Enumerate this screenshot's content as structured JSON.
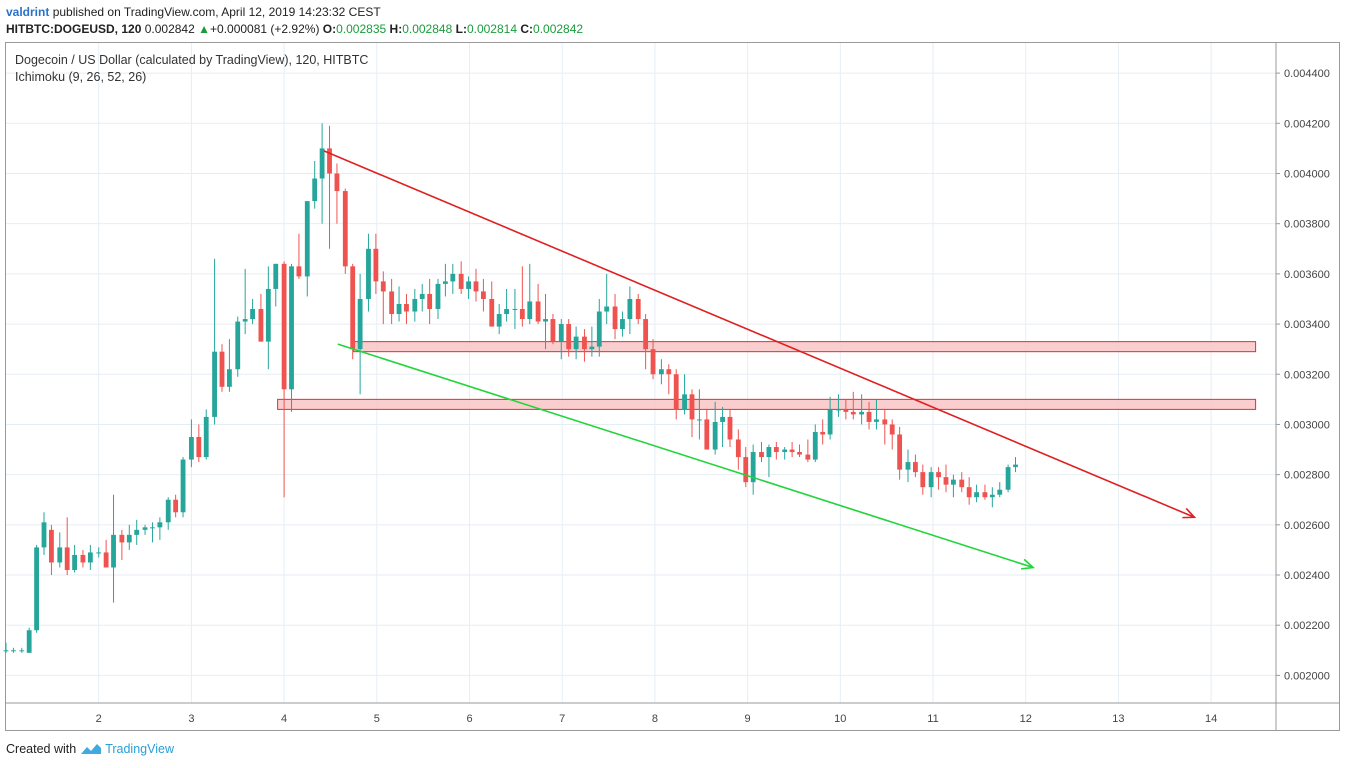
{
  "header": {
    "user": "valdrint",
    "published": "published on TradingView.com, April 12, 2019 14:23:32 CEST",
    "symbol": "HITBTC:DOGEUSD",
    "interval": ", 120",
    "last": "0.002842",
    "change": "+0.000081 (+2.92%)",
    "o_label": "O:",
    "o_value": "0.002835",
    "h_label": "H:",
    "h_value": "0.002848",
    "l_label": "L:",
    "l_value": "0.002814",
    "c_label": "C:",
    "c_value": "0.002842"
  },
  "legend": {
    "title": "Dogecoin / US Dollar (calculated by TradingView), 120, HITBTC",
    "indicator": "Ichimoku (9, 26, 52, 26)"
  },
  "footer": {
    "created_with": "Created with",
    "brand": "TradingView"
  },
  "colors": {
    "up": "#26a69a",
    "down": "#ef5350",
    "resistance": "#e02020",
    "support": "#22d43a",
    "zone_fill": "#f9c6c6",
    "zone_stroke": "#e03030",
    "grid": "#e6eef5"
  },
  "chart_data": {
    "type": "candlestick",
    "title": "Dogecoin / US Dollar (calculated by TradingView), 120, HITBTC",
    "xlabel": "",
    "ylabel": "",
    "x_ticks": [
      "2",
      "3",
      "4",
      "5",
      "6",
      "7",
      "8",
      "9",
      "10",
      "11",
      "12",
      "13",
      "14"
    ],
    "x_tick_values": [
      2,
      3,
      4,
      5,
      6,
      7,
      8,
      9,
      10,
      11,
      12,
      13,
      14
    ],
    "xlim": [
      1,
      14.7
    ],
    "y_ticks": [
      "0.002000",
      "0.002200",
      "0.002400",
      "0.002600",
      "0.002800",
      "0.003000",
      "0.003200",
      "0.003400",
      "0.003600",
      "0.003800",
      "0.004000",
      "0.004200",
      "0.004400"
    ],
    "y_tick_values": [
      0.002,
      0.0022,
      0.0024,
      0.0026,
      0.0028,
      0.003,
      0.0032,
      0.0034,
      0.0036,
      0.0038,
      0.004,
      0.0042,
      0.0044
    ],
    "ylim": [
      0.00189,
      0.00452
    ],
    "candles": [
      [
        1.0,
        0.0021,
        0.00213,
        0.00209,
        0.0021
      ],
      [
        1.08,
        0.0021,
        0.00211,
        0.00209,
        0.0021
      ],
      [
        1.17,
        0.0021,
        0.00211,
        0.00209,
        0.0021
      ],
      [
        1.25,
        0.00209,
        0.00219,
        0.00209,
        0.00218
      ],
      [
        1.33,
        0.00218,
        0.00252,
        0.00217,
        0.00251
      ],
      [
        1.41,
        0.00251,
        0.00265,
        0.00248,
        0.00261
      ],
      [
        1.49,
        0.00258,
        0.0026,
        0.0024,
        0.00245
      ],
      [
        1.58,
        0.00245,
        0.00257,
        0.00243,
        0.00251
      ],
      [
        1.66,
        0.00251,
        0.00263,
        0.0024,
        0.00242
      ],
      [
        1.74,
        0.00242,
        0.00252,
        0.00241,
        0.00248
      ],
      [
        1.83,
        0.00248,
        0.0025,
        0.00243,
        0.00245
      ],
      [
        1.91,
        0.00245,
        0.00252,
        0.00242,
        0.00249
      ],
      [
        2.0,
        0.00249,
        0.00251,
        0.00247,
        0.00249
      ],
      [
        2.08,
        0.00249,
        0.00254,
        0.00243,
        0.00243
      ],
      [
        2.16,
        0.00243,
        0.00272,
        0.00229,
        0.00256
      ],
      [
        2.25,
        0.00256,
        0.00258,
        0.00246,
        0.00253
      ],
      [
        2.33,
        0.00253,
        0.0026,
        0.0025,
        0.00256
      ],
      [
        2.41,
        0.00256,
        0.00262,
        0.00252,
        0.00258
      ],
      [
        2.5,
        0.00258,
        0.0026,
        0.00256,
        0.00259
      ],
      [
        2.58,
        0.00259,
        0.00261,
        0.00253,
        0.00259
      ],
      [
        2.66,
        0.00259,
        0.00263,
        0.00254,
        0.00261
      ],
      [
        2.75,
        0.00261,
        0.00271,
        0.00258,
        0.0027
      ],
      [
        2.83,
        0.0027,
        0.00272,
        0.00263,
        0.00265
      ],
      [
        2.91,
        0.00265,
        0.00287,
        0.00263,
        0.00286
      ],
      [
        3.0,
        0.00286,
        0.00302,
        0.00283,
        0.00295
      ],
      [
        3.08,
        0.00295,
        0.003,
        0.00285,
        0.00287
      ],
      [
        3.16,
        0.00287,
        0.00306,
        0.00286,
        0.00303
      ],
      [
        3.25,
        0.00303,
        0.00366,
        0.003,
        0.00329
      ],
      [
        3.33,
        0.00329,
        0.00332,
        0.00313,
        0.00315
      ],
      [
        3.41,
        0.00315,
        0.00334,
        0.00313,
        0.00322
      ],
      [
        3.5,
        0.00322,
        0.00343,
        0.00319,
        0.00341
      ],
      [
        3.58,
        0.00341,
        0.00362,
        0.00336,
        0.00342
      ],
      [
        3.66,
        0.00342,
        0.0035,
        0.0034,
        0.00346
      ],
      [
        3.75,
        0.00346,
        0.00352,
        0.00333,
        0.00333
      ],
      [
        3.83,
        0.00333,
        0.00363,
        0.00322,
        0.00354
      ],
      [
        3.91,
        0.00354,
        0.00364,
        0.00347,
        0.00364
      ],
      [
        4.0,
        0.00364,
        0.00365,
        0.00271,
        0.00314
      ],
      [
        4.08,
        0.00314,
        0.00364,
        0.00305,
        0.00363
      ],
      [
        4.16,
        0.00363,
        0.00376,
        0.00358,
        0.00359
      ],
      [
        4.25,
        0.00359,
        0.00388,
        0.00351,
        0.00389
      ],
      [
        4.33,
        0.00389,
        0.00405,
        0.00386,
        0.00398
      ],
      [
        4.41,
        0.00398,
        0.0042,
        0.0038,
        0.0041
      ],
      [
        4.49,
        0.0041,
        0.00419,
        0.0037,
        0.004
      ],
      [
        4.57,
        0.004,
        0.00404,
        0.0038,
        0.00393
      ],
      [
        4.66,
        0.00393,
        0.00394,
        0.0036,
        0.00363
      ],
      [
        4.74,
        0.00363,
        0.00364,
        0.00326,
        0.0033
      ],
      [
        4.82,
        0.0033,
        0.0036,
        0.00312,
        0.0035
      ],
      [
        4.91,
        0.0035,
        0.00376,
        0.00345,
        0.0037
      ],
      [
        4.99,
        0.0037,
        0.00376,
        0.00352,
        0.00357
      ],
      [
        5.07,
        0.00357,
        0.00361,
        0.0034,
        0.00353
      ],
      [
        5.16,
        0.00353,
        0.00358,
        0.0034,
        0.00344
      ],
      [
        5.24,
        0.00344,
        0.00355,
        0.00341,
        0.00348
      ],
      [
        5.32,
        0.00348,
        0.00352,
        0.0034,
        0.00345
      ],
      [
        5.41,
        0.00345,
        0.00354,
        0.00341,
        0.0035
      ],
      [
        5.49,
        0.0035,
        0.00356,
        0.00345,
        0.00352
      ],
      [
        5.57,
        0.00352,
        0.00358,
        0.0034,
        0.00346
      ],
      [
        5.66,
        0.00346,
        0.00358,
        0.00342,
        0.00356
      ],
      [
        5.74,
        0.00356,
        0.00364,
        0.00351,
        0.00357
      ],
      [
        5.82,
        0.00357,
        0.00364,
        0.00352,
        0.0036
      ],
      [
        5.91,
        0.0036,
        0.00365,
        0.00352,
        0.00354
      ],
      [
        5.99,
        0.00354,
        0.00359,
        0.0035,
        0.00357
      ],
      [
        6.07,
        0.00357,
        0.00362,
        0.00349,
        0.00353
      ],
      [
        6.15,
        0.00353,
        0.00358,
        0.00345,
        0.0035
      ],
      [
        6.24,
        0.0035,
        0.00357,
        0.0034,
        0.00339
      ],
      [
        6.32,
        0.00339,
        0.00348,
        0.00336,
        0.00344
      ],
      [
        6.4,
        0.00344,
        0.00354,
        0.00341,
        0.00346
      ],
      [
        6.49,
        0.00346,
        0.00354,
        0.00338,
        0.00346
      ],
      [
        6.57,
        0.00346,
        0.00363,
        0.00339,
        0.00342
      ],
      [
        6.65,
        0.00342,
        0.00364,
        0.0034,
        0.00349
      ],
      [
        6.74,
        0.00349,
        0.00356,
        0.0034,
        0.00341
      ],
      [
        6.82,
        0.00341,
        0.00352,
        0.0033,
        0.00342
      ],
      [
        6.9,
        0.00342,
        0.00344,
        0.00332,
        0.00333
      ],
      [
        6.99,
        0.00333,
        0.00342,
        0.00326,
        0.0034
      ],
      [
        7.07,
        0.0034,
        0.00342,
        0.00327,
        0.0033
      ],
      [
        7.15,
        0.0033,
        0.00339,
        0.00326,
        0.00335
      ],
      [
        7.24,
        0.00335,
        0.00338,
        0.00325,
        0.0033
      ],
      [
        7.32,
        0.0033,
        0.00339,
        0.00327,
        0.00331
      ],
      [
        7.4,
        0.00331,
        0.0035,
        0.00327,
        0.00345
      ],
      [
        7.48,
        0.00345,
        0.0036,
        0.0034,
        0.00347
      ],
      [
        7.57,
        0.00347,
        0.00352,
        0.00334,
        0.00338
      ],
      [
        7.65,
        0.00338,
        0.00345,
        0.00335,
        0.00342
      ],
      [
        7.73,
        0.00342,
        0.00355,
        0.00336,
        0.0035
      ],
      [
        7.82,
        0.0035,
        0.00352,
        0.0034,
        0.00342
      ],
      [
        7.9,
        0.00342,
        0.00344,
        0.00322,
        0.0033
      ],
      [
        7.98,
        0.0033,
        0.00334,
        0.00318,
        0.0032
      ],
      [
        8.07,
        0.0032,
        0.00326,
        0.00316,
        0.00322
      ],
      [
        8.15,
        0.00322,
        0.00324,
        0.00312,
        0.0032
      ],
      [
        8.23,
        0.0032,
        0.00322,
        0.00302,
        0.00306
      ],
      [
        8.32,
        0.00306,
        0.0032,
        0.00304,
        0.00312
      ],
      [
        8.4,
        0.00312,
        0.00314,
        0.00295,
        0.00302
      ],
      [
        8.48,
        0.00302,
        0.00314,
        0.00294,
        0.00302
      ],
      [
        8.56,
        0.00302,
        0.00306,
        0.0029,
        0.0029
      ],
      [
        8.65,
        0.0029,
        0.00309,
        0.00288,
        0.00301
      ],
      [
        8.73,
        0.00301,
        0.00307,
        0.00291,
        0.00303
      ],
      [
        8.81,
        0.00303,
        0.00306,
        0.00291,
        0.00294
      ],
      [
        8.9,
        0.00294,
        0.00298,
        0.00282,
        0.00287
      ],
      [
        8.98,
        0.00287,
        0.00291,
        0.00275,
        0.00277
      ],
      [
        9.06,
        0.00277,
        0.00292,
        0.00272,
        0.00289
      ],
      [
        9.15,
        0.00289,
        0.00293,
        0.00285,
        0.00287
      ],
      [
        9.23,
        0.00287,
        0.00292,
        0.00279,
        0.00291
      ],
      [
        9.31,
        0.00291,
        0.00293,
        0.00286,
        0.00289
      ],
      [
        9.4,
        0.00289,
        0.00291,
        0.00286,
        0.0029
      ],
      [
        9.48,
        0.0029,
        0.00293,
        0.00287,
        0.00289
      ],
      [
        9.56,
        0.00289,
        0.00292,
        0.00287,
        0.00288
      ],
      [
        9.65,
        0.00288,
        0.00294,
        0.00285,
        0.00286
      ],
      [
        9.73,
        0.00286,
        0.003,
        0.00285,
        0.00297
      ],
      [
        9.81,
        0.00297,
        0.00302,
        0.00292,
        0.00296
      ],
      [
        9.89,
        0.00296,
        0.00311,
        0.00294,
        0.00306
      ],
      [
        9.98,
        0.00306,
        0.00312,
        0.00303,
        0.00306
      ],
      [
        10.06,
        0.00306,
        0.0031,
        0.00302,
        0.00305
      ],
      [
        10.14,
        0.00305,
        0.00313,
        0.00302,
        0.00304
      ],
      [
        10.23,
        0.00304,
        0.00312,
        0.003,
        0.00305
      ],
      [
        10.31,
        0.00305,
        0.00309,
        0.00298,
        0.00301
      ],
      [
        10.39,
        0.00301,
        0.0031,
        0.00298,
        0.00302
      ],
      [
        10.48,
        0.00302,
        0.00306,
        0.00292,
        0.003
      ],
      [
        10.56,
        0.003,
        0.00302,
        0.0029,
        0.00296
      ],
      [
        10.64,
        0.00296,
        0.00299,
        0.00278,
        0.00282
      ],
      [
        10.73,
        0.00282,
        0.0029,
        0.00277,
        0.00285
      ],
      [
        10.81,
        0.00285,
        0.00288,
        0.00279,
        0.00281
      ],
      [
        10.89,
        0.00281,
        0.00284,
        0.00272,
        0.00275
      ],
      [
        10.98,
        0.00275,
        0.00283,
        0.00271,
        0.00281
      ],
      [
        11.06,
        0.00281,
        0.00283,
        0.00274,
        0.00279
      ],
      [
        11.14,
        0.00279,
        0.00284,
        0.00273,
        0.00276
      ],
      [
        11.22,
        0.00276,
        0.0028,
        0.00271,
        0.00278
      ],
      [
        11.31,
        0.00278,
        0.00281,
        0.00273,
        0.00275
      ],
      [
        11.39,
        0.00275,
        0.00279,
        0.00268,
        0.00271
      ],
      [
        11.47,
        0.00271,
        0.00276,
        0.00269,
        0.00273
      ],
      [
        11.56,
        0.00273,
        0.00276,
        0.0027,
        0.00271
      ],
      [
        11.64,
        0.00271,
        0.00275,
        0.00267,
        0.00272
      ],
      [
        11.72,
        0.00272,
        0.00277,
        0.00271,
        0.00274
      ],
      [
        11.81,
        0.00274,
        0.00284,
        0.00273,
        0.00283
      ],
      [
        11.89,
        0.00283,
        0.00287,
        0.00281,
        0.00284
      ]
    ],
    "series": [
      {
        "name": "Descending resistance",
        "type": "trendline",
        "x": [
          4.43,
          13.82
        ],
        "y": [
          0.00409,
          0.00263
        ]
      },
      {
        "name": "Descending support",
        "type": "trendline",
        "x": [
          4.58,
          12.08
        ],
        "y": [
          0.00332,
          0.00243
        ]
      }
    ],
    "zones": [
      {
        "y_low": 0.00329,
        "y_high": 0.00333,
        "x_start": 4.75,
        "x_end": 14.48
      },
      {
        "y_low": 0.00306,
        "y_high": 0.0031,
        "x_start": 3.93,
        "x_end": 14.48
      }
    ],
    "grid": true
  }
}
